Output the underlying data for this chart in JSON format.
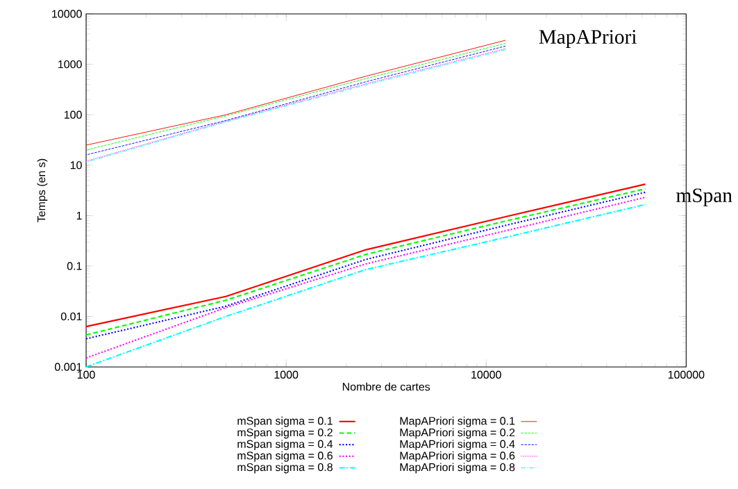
{
  "chart_data": {
    "type": "line",
    "xlabel": "Nombre de cartes",
    "ylabel": "Temps (en s)",
    "log": "xy",
    "xlim": [
      100,
      100000
    ],
    "ylim": [
      0.001,
      10000
    ],
    "xticks": [
      100,
      1000,
      10000,
      100000
    ],
    "yticks": [
      0.001,
      0.01,
      0.1,
      1,
      10,
      100,
      1000,
      10000
    ],
    "grid": false,
    "legend": "bottom",
    "marker": "none",
    "annotations": [
      "MapAPriori",
      "mSpan"
    ],
    "series": [
      {
        "name": "mSpan sigma = 0.1",
        "color": "#ff0000",
        "line_style": "solid",
        "x": [
          100,
          500,
          2500,
          12500,
          62500
        ],
        "values": [
          0.0063,
          0.025,
          0.21,
          0.95,
          4.2
        ]
      },
      {
        "name": "mSpan sigma = 0.2",
        "color": "#00ff00",
        "line_style": "dashed",
        "x": [
          100,
          500,
          2500,
          12500,
          62500
        ],
        "values": [
          0.0043,
          0.021,
          0.17,
          0.78,
          3.4
        ]
      },
      {
        "name": "mSpan sigma = 0.4",
        "color": "#0000ff",
        "line_style": "dotted",
        "x": [
          100,
          500,
          2500,
          12500,
          62500
        ],
        "values": [
          0.0036,
          0.016,
          0.135,
          0.64,
          2.9
        ]
      },
      {
        "name": "mSpan sigma = 0.6",
        "color": "#ff00ff",
        "line_style": "dotted",
        "x": [
          100,
          500,
          2500,
          12500,
          62500
        ],
        "values": [
          0.0015,
          0.015,
          0.11,
          0.5,
          2.3
        ]
      },
      {
        "name": "mSpan sigma = 0.8",
        "color": "#00ffff",
        "line_style": "dashdot",
        "x": [
          100,
          500,
          2500,
          12500,
          62500
        ],
        "values": [
          0.001,
          0.01,
          0.085,
          0.37,
          1.66
        ]
      },
      {
        "name": "MapAPriori sigma = 0.1",
        "color": "#ff0000",
        "line_style": "solid",
        "x": [
          100,
          500,
          2500,
          12500
        ],
        "values": [
          25,
          100,
          580,
          3000
        ]
      },
      {
        "name": "MapAPriori sigma = 0.2",
        "color": "#00ff00",
        "line_style": "dashed",
        "x": [
          100,
          500,
          2500,
          12500
        ],
        "values": [
          20,
          95,
          520,
          2600
        ]
      },
      {
        "name": "MapAPriori sigma = 0.4",
        "color": "#0000ff",
        "line_style": "dashed",
        "x": [
          100,
          500,
          2500,
          12500
        ],
        "values": [
          16,
          77,
          450,
          2300
        ]
      },
      {
        "name": "MapAPriori sigma = 0.6",
        "color": "#ff00ff",
        "line_style": "dotted",
        "x": [
          100,
          500,
          2500,
          12500
        ],
        "values": [
          12,
          75,
          410,
          2050
        ]
      },
      {
        "name": "MapAPriori sigma = 0.8",
        "color": "#00ffff",
        "line_style": "dashdot",
        "x": [
          100,
          500,
          2500,
          12500
        ],
        "values": [
          11.5,
          72,
          390,
          1950
        ]
      }
    ]
  }
}
